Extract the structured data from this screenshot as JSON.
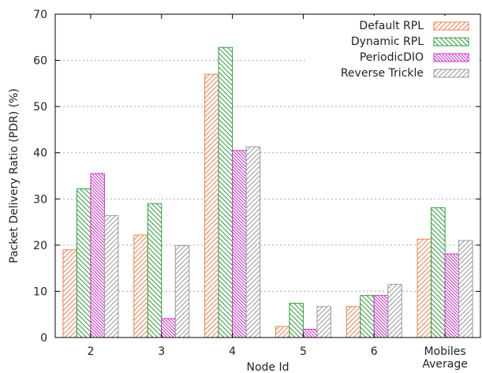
{
  "chart_data": {
    "type": "bar",
    "xlabel": "Node Id",
    "ylabel": "Packet Delivery Ratio (PDR) (%)",
    "ylim": [
      0,
      70
    ],
    "yticks": [
      0,
      10,
      20,
      30,
      40,
      50,
      60,
      70
    ],
    "categories": [
      [
        "2"
      ],
      [
        "3"
      ],
      [
        "4"
      ],
      [
        "5"
      ],
      [
        "6"
      ],
      [
        "Mobiles",
        "Average"
      ]
    ],
    "grid": "horizontal-dotted",
    "legend_position": "top-right",
    "series": [
      {
        "name": "Default RPL",
        "color": "#f08050",
        "pattern": "diag-up",
        "values": [
          19.0,
          22.2,
          57.0,
          2.4,
          6.7,
          21.3
        ]
      },
      {
        "name": "Dynamic RPL",
        "color": "#2e9e3a",
        "pattern": "diag-down",
        "values": [
          32.2,
          29.0,
          62.8,
          7.4,
          9.1,
          28.1
        ]
      },
      {
        "name": "PeriodicDIO",
        "color": "#cc33cc",
        "pattern": "diag-down-dense",
        "values": [
          35.5,
          4.1,
          40.5,
          1.8,
          9.1,
          18.1
        ]
      },
      {
        "name": "Reverse Trickle",
        "color": "#999999",
        "pattern": "diag-up",
        "values": [
          26.4,
          19.9,
          41.3,
          6.7,
          11.5,
          21.0
        ]
      }
    ]
  }
}
